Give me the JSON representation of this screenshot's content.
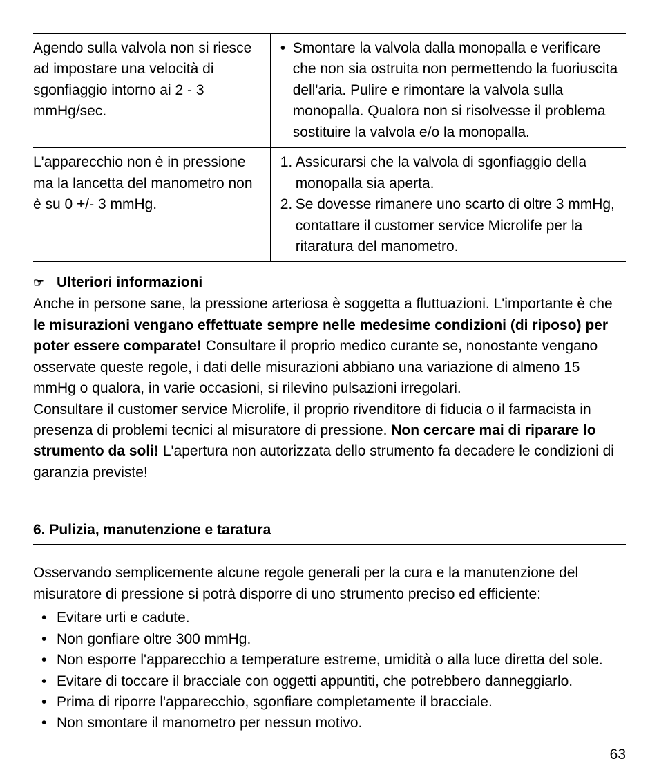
{
  "table": {
    "rows": [
      {
        "problem": "Agendo sulla valvola non si riesce ad impostare una velocità di sgonfiaggio intorno ai 2 - 3 mmHg/sec.",
        "solution_bullet": "Smontare la valvola dalla monopalla e verificare che non sia ostruita non permettendo la fuoriuscita dell'aria. Pulire e rimontare la valvola sulla monopalla. Qualora non si risolvesse il problema sostituire la valvola e/o la monopalla."
      },
      {
        "problem": "L'apparecchio non è in pressione ma la lancetta del manometro non è su 0 +/- 3 mmHg.",
        "solution_num_1": "Assicurarsi che la valvola di sgonfiaggio della monopalla sia aperta.",
        "solution_num_2": "Se dovesse rimanere uno scarto di oltre 3 mmHg, contattare il customer service Microlife per la ritaratura del manometro."
      }
    ]
  },
  "info": {
    "hand": "☞",
    "title": "Ulteriori informazioni",
    "p1_a": "Anche in persone sane, la pressione arteriosa è soggetta a fluttuazioni. L'importante è che ",
    "p1_b": "le misurazioni vengano effettuate sempre nelle medesime condizioni (di riposo) per poter essere comparate!",
    "p1_c": " Consultare il proprio medico curante se, nonostante vengano osservate queste regole, i dati delle misurazioni abbiano una variazione di almeno 15 mmHg o qualora, in varie occasioni, si rilevino pulsazioni irregolari.",
    "p2_a": "Consultare il customer service Microlife, il proprio rivenditore di fiducia o il farmacista in presenza di problemi tecnici al misuratore di pressione. ",
    "p2_b": "Non cercare mai di riparare lo strumento da soli!",
    "p2_c": " L'apertura non autorizzata dello strumento fa decadere le condizioni di garanzia previste!"
  },
  "section": {
    "title": "6. Pulizia, manutenzione e taratura",
    "intro": "Osservando semplicemente alcune regole generali per la cura e la manutenzione del misuratore di pressione si potrà disporre di uno strumento preciso ed efficiente:",
    "items": [
      "Evitare urti e cadute.",
      "Non gonfiare oltre 300 mmHg.",
      "Non esporre l'apparecchio a temperature estreme, umidità o alla luce diretta del sole.",
      "Evitare di toccare il bracciale con oggetti appuntiti, che potrebbero danneggiarlo.",
      "Prima di riporre l'apparecchio, sgonfiare completamente il bracciale.",
      "Non smontare il manometro per nessun motivo."
    ]
  },
  "page_number": "63"
}
